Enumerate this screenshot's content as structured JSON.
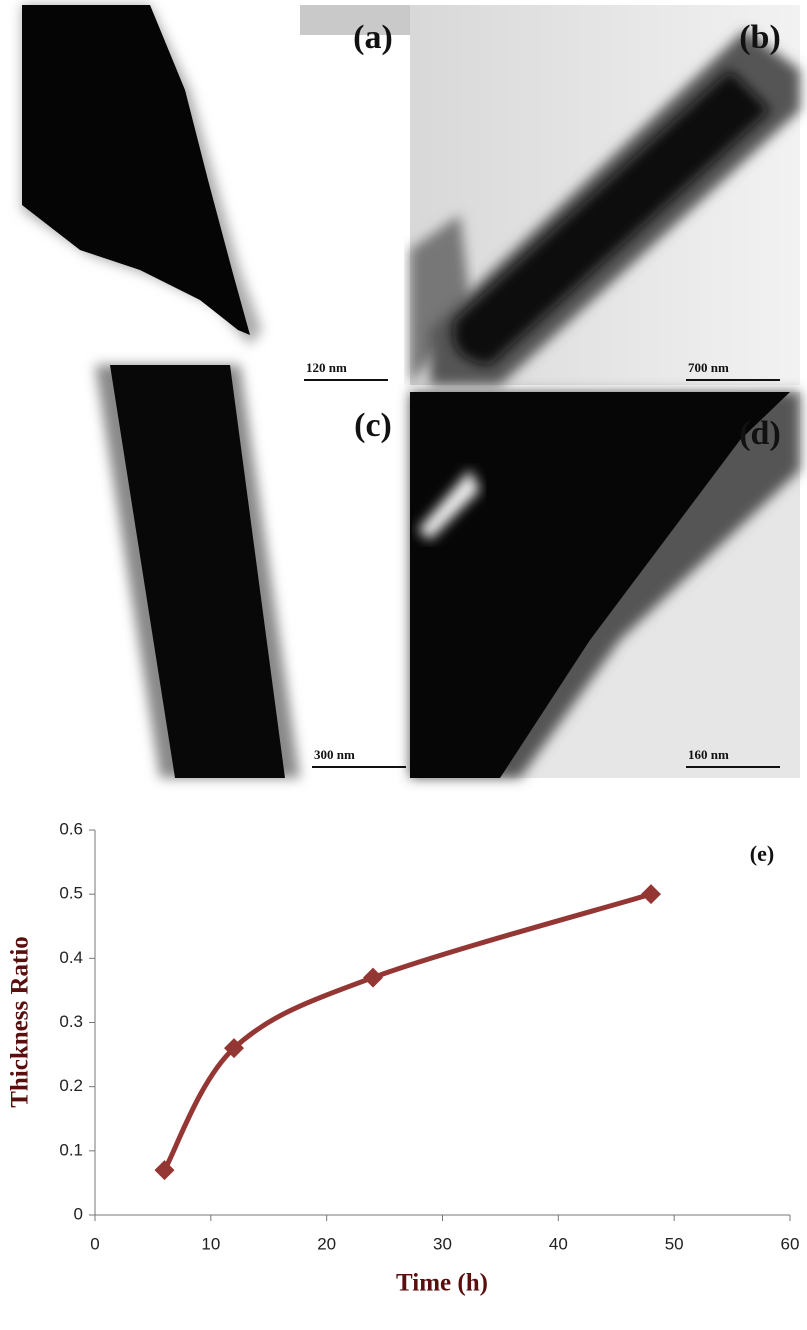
{
  "panels": [
    {
      "label": "(a)",
      "scale_bar": "120 nm"
    },
    {
      "label": "(b)",
      "scale_bar": "700 nm"
    },
    {
      "label": "(c)",
      "scale_bar": "300 nm"
    },
    {
      "label": "(d)",
      "scale_bar": "160 nm"
    }
  ],
  "chart_data": {
    "type": "line",
    "annotation": "(e)",
    "x_label": "Time (h)",
    "y_label": "Thickness Ratio",
    "x": [
      6,
      12,
      24,
      48
    ],
    "series": [
      {
        "name": "Thickness Ratio",
        "color": "#943634",
        "values": [
          0.07,
          0.26,
          0.37,
          0.5
        ]
      }
    ],
    "xlim": [
      0,
      60
    ],
    "xticks": [
      0,
      10,
      20,
      30,
      40,
      50,
      60
    ],
    "ylim": [
      0,
      0.6
    ],
    "yticks": [
      0,
      0.1,
      0.2,
      0.3,
      0.4,
      0.5,
      0.6
    ],
    "smooth": true,
    "legend": false
  }
}
